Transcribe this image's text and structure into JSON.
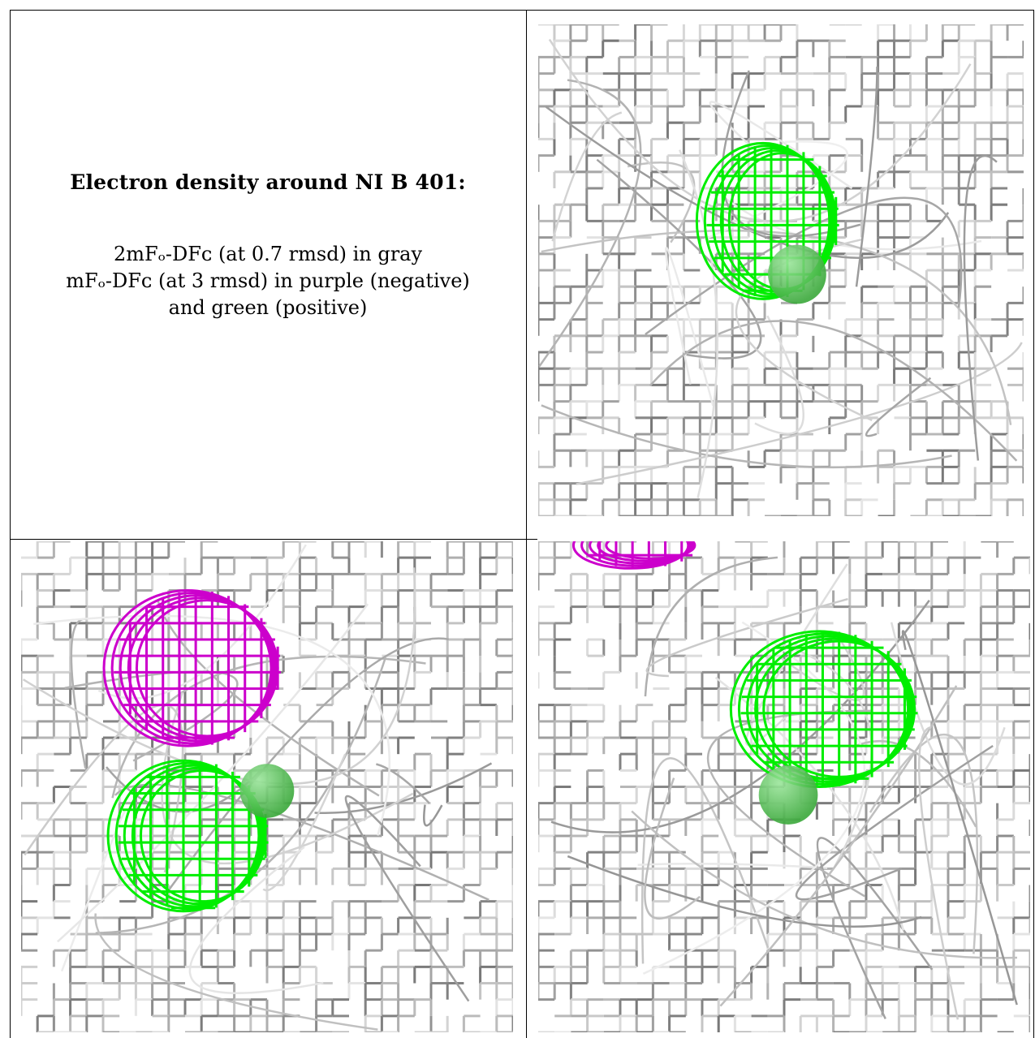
{
  "caption": {
    "title": "Electron density around NI B 401:",
    "legend_lines": [
      "2mFₒ-DFᴄ (at 0.7 rmsd) in gray",
      "mFₒ-DFᴄ (at 3 rmsd) in purple (negative)",
      "and green (positive)"
    ]
  },
  "colors": {
    "density_2fofc": "#9a9a9a",
    "density_negative": "#cc00cc",
    "density_positive": "#00ee00",
    "atom_ni": "#3aa83a",
    "border": "#000000"
  },
  "panels": [
    {
      "name": "view-1",
      "ni_atom": true,
      "positive_blob": true,
      "negative_blob": false
    },
    {
      "name": "view-2",
      "ni_atom": true,
      "positive_blob": true,
      "negative_blob": true
    },
    {
      "name": "view-3",
      "ni_atom": true,
      "positive_blob": true,
      "negative_blob": true
    }
  ]
}
